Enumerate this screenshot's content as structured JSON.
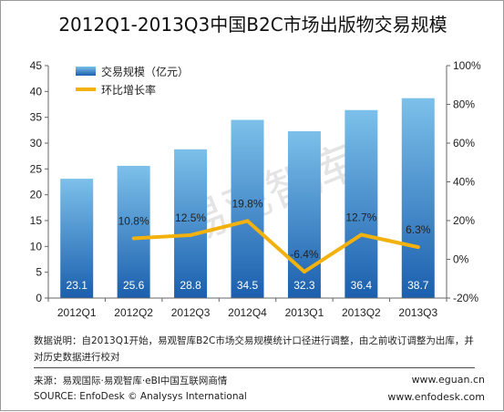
{
  "header": {
    "title": "2012Q1-2013Q3中国B2C市场出版物交易规模"
  },
  "chart_data": {
    "type": "bar",
    "categories": [
      "2012Q1",
      "2012Q2",
      "2012Q3",
      "2012Q4",
      "2013Q1",
      "2013Q2",
      "2013Q3"
    ],
    "series": [
      {
        "name": "交易规模（亿元）",
        "type": "bar",
        "axis": "left",
        "values": [
          23.1,
          25.6,
          28.8,
          34.5,
          32.3,
          36.4,
          38.7
        ]
      },
      {
        "name": "环比增长率",
        "type": "line",
        "axis": "right",
        "values": [
          null,
          10.8,
          12.5,
          19.8,
          -6.4,
          12.7,
          6.3
        ]
      }
    ],
    "bar_labels": [
      "23.1",
      "25.6",
      "28.8",
      "34.5",
      "32.3",
      "36.4",
      "38.7"
    ],
    "line_labels": [
      "",
      "10.8%",
      "12.5%",
      "19.8%",
      "-6.4%",
      "12.7%",
      "6.3%"
    ],
    "y_left": {
      "ylim": [
        0,
        45
      ],
      "ticks": [
        "0",
        "5",
        "10",
        "15",
        "20",
        "25",
        "30",
        "35",
        "40",
        "45"
      ]
    },
    "y_right": {
      "ylim": [
        -20,
        100
      ],
      "ticks": [
        "-20%",
        "0%",
        "20%",
        "40%",
        "60%",
        "80%",
        "100%"
      ]
    },
    "grid": false,
    "legend_position": "top-left",
    "colors": {
      "bar_top": "#7cc0ea",
      "bar_bottom": "#1b5fae",
      "line": "#f2b10c",
      "axis": "#666666"
    }
  },
  "watermark": "易观智库",
  "footer": {
    "note": "数据说明：自2013Q1开始，易观智库B2C市场交易规模统计口径进行调整，由之前收订调整为出库，并对历史数据进行校对",
    "source_cn": "来源：易观国际·易观智库·eBI中国互联网商情",
    "source_en": "SOURCE: EnfoDesk © Analysys International",
    "url1": "www.eguan.cn",
    "url2": "www.enfodesk.com"
  }
}
